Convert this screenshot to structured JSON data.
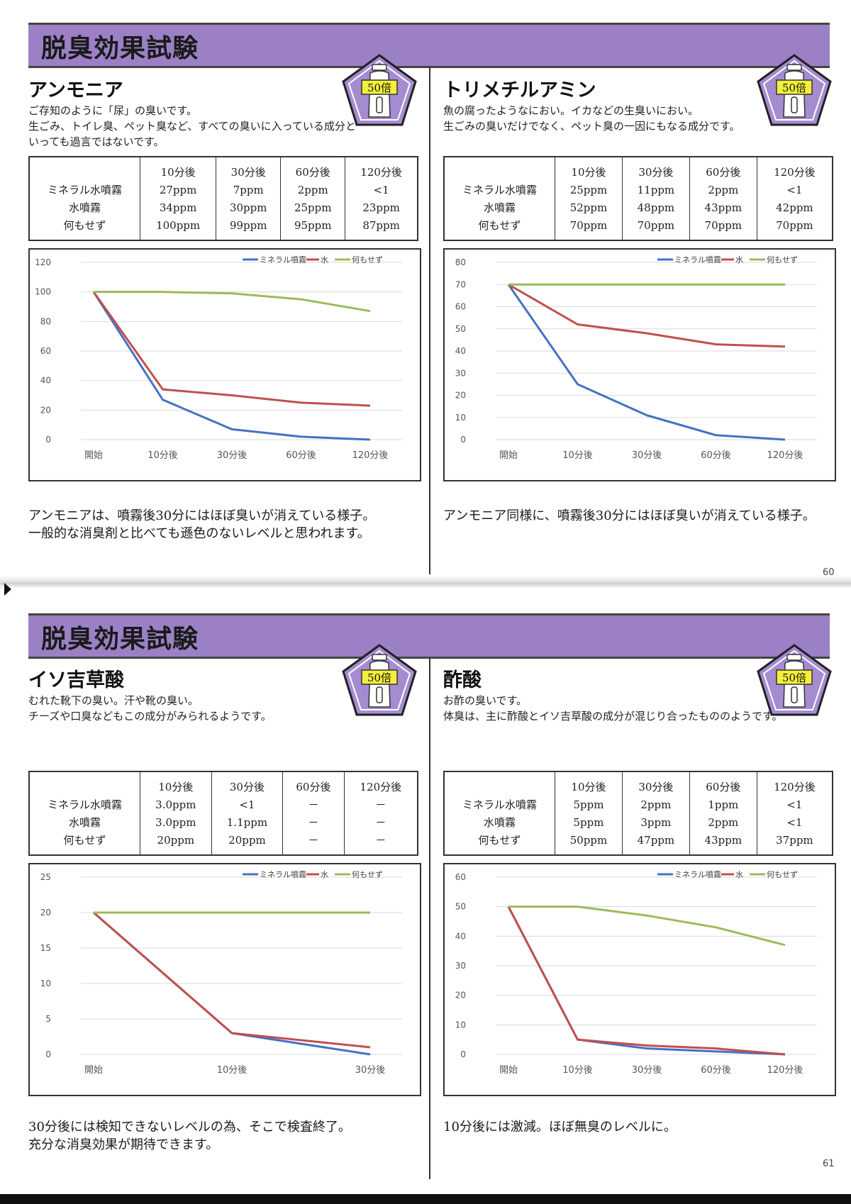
{
  "pages": [
    {
      "banner_title": "脱臭効果試験",
      "page_number": "60",
      "sections": [
        {
          "heading": "アンモニア",
          "badge": "50倍",
          "description": "ご存知のように「尿」の臭いです。\n生ごみ、トイレ臭、ペット臭など、すべての臭いに入っている成分と\nいっても過言ではないです。",
          "table": {
            "headers": [
              "",
              "10分後",
              "30分後",
              "60分後",
              "120分後"
            ],
            "rows": [
              [
                "ミネラル水噴霧",
                "27ppm",
                "7ppm",
                "2ppm",
                "<1"
              ],
              [
                "水噴霧",
                "34ppm",
                "30ppm",
                "25ppm",
                "23ppm"
              ],
              [
                "何もせず",
                "100ppm",
                "99ppm",
                "95ppm",
                "87ppm"
              ]
            ]
          },
          "chart_data": {
            "type": "line",
            "categories": [
              "開始",
              "10分後",
              "30分後",
              "60分後",
              "120分後"
            ],
            "series": [
              {
                "name": "ミネラル噴霧",
                "values": [
                  100,
                  27,
                  7,
                  2,
                  0
                ],
                "color": "#4472c4"
              },
              {
                "name": "水",
                "values": [
                  100,
                  34,
                  30,
                  25,
                  23
                ],
                "color": "#c0504d"
              },
              {
                "name": "何もせず",
                "values": [
                  100,
                  100,
                  99,
                  95,
                  87
                ],
                "color": "#9bbb59"
              }
            ],
            "ylim": [
              0,
              120
            ],
            "yticks": [
              "0",
              "20",
              "40",
              "60",
              "80",
              "100",
              "120"
            ],
            "grid": true,
            "legend": "top-right"
          },
          "conclusion": "アンモニアは、噴霧後30分にはほぼ臭いが消えている様子。\n一般的な消臭剤と比べても遜色のないレベルと思われます。"
        },
        {
          "heading": "トリメチルアミン",
          "badge": "50倍",
          "description": "魚の腐ったようなにおい。イカなどの生臭いにおい。\n生ごみの臭いだけでなく、ペット臭の一因にもなる成分です。",
          "table": {
            "headers": [
              "",
              "10分後",
              "30分後",
              "60分後",
              "120分後"
            ],
            "rows": [
              [
                "ミネラル水噴霧",
                "25ppm",
                "11ppm",
                "2ppm",
                "<1"
              ],
              [
                "水噴霧",
                "52ppm",
                "48ppm",
                "43ppm",
                "42ppm"
              ],
              [
                "何もせず",
                "70ppm",
                "70ppm",
                "70ppm",
                "70ppm"
              ]
            ]
          },
          "chart_data": {
            "type": "line",
            "categories": [
              "開始",
              "10分後",
              "30分後",
              "60分後",
              "120分後"
            ],
            "series": [
              {
                "name": "ミネラル噴霧",
                "values": [
                  70,
                  25,
                  11,
                  2,
                  0
                ],
                "color": "#4472c4"
              },
              {
                "name": "水",
                "values": [
                  70,
                  52,
                  48,
                  43,
                  42
                ],
                "color": "#c0504d"
              },
              {
                "name": "何もせず",
                "values": [
                  70,
                  70,
                  70,
                  70,
                  70
                ],
                "color": "#9bbb59"
              }
            ],
            "ylim": [
              0,
              80
            ],
            "yticks": [
              "0",
              "10",
              "20",
              "30",
              "40",
              "50",
              "60",
              "70",
              "80"
            ],
            "grid": true,
            "legend": "top-right"
          },
          "conclusion": "アンモニア同様に、噴霧後30分にはほぼ臭いが消えている様子。"
        }
      ]
    },
    {
      "banner_title": "脱臭効果試験",
      "page_number": "61",
      "sections": [
        {
          "heading": "イソ吉草酸",
          "badge": "50倍",
          "description": "むれた靴下の臭い。汗や靴の臭い。\nチーズや口臭などもこの成分がみられるようです。",
          "table": {
            "headers": [
              "",
              "10分後",
              "30分後",
              "60分後",
              "120分後"
            ],
            "rows": [
              [
                "ミネラル水噴霧",
                "3.0ppm",
                "<1",
                "－",
                "－"
              ],
              [
                "水噴霧",
                "3.0ppm",
                "1.1ppm",
                "－",
                "－"
              ],
              [
                "何もせず",
                "20ppm",
                "20ppm",
                "－",
                "－"
              ]
            ]
          },
          "chart_data": {
            "type": "line",
            "categories": [
              "開始",
              "10分後",
              "30分後"
            ],
            "series": [
              {
                "name": "ミネラル噴霧",
                "values": [
                  20,
                  3,
                  0
                ],
                "color": "#4472c4"
              },
              {
                "name": "水",
                "values": [
                  20,
                  3,
                  1
                ],
                "color": "#c0504d"
              },
              {
                "name": "何もせず",
                "values": [
                  20,
                  20,
                  20
                ],
                "color": "#9bbb59"
              }
            ],
            "ylim": [
              0,
              25
            ],
            "yticks": [
              "0",
              "5",
              "10",
              "15",
              "20",
              "25"
            ],
            "grid": true,
            "legend": "top-right"
          },
          "conclusion": "30分後には検知できないレベルの為、そこで検査終了。\n充分な消臭効果が期待できます。"
        },
        {
          "heading": "酢酸",
          "badge": "50倍",
          "description": "お酢の臭いです。\n体臭は、主に酢酸とイソ吉草酸の成分が混じり合ったもののようです。",
          "table": {
            "headers": [
              "",
              "10分後",
              "30分後",
              "60分後",
              "120分後"
            ],
            "rows": [
              [
                "ミネラル水噴霧",
                "5ppm",
                "2ppm",
                "1ppm",
                "<1"
              ],
              [
                "水噴霧",
                "5ppm",
                "3ppm",
                "2ppm",
                "<1"
              ],
              [
                "何もせず",
                "50ppm",
                "47ppm",
                "43ppm",
                "37ppm"
              ]
            ]
          },
          "chart_data": {
            "type": "line",
            "categories": [
              "開始",
              "10分後",
              "30分後",
              "60分後",
              "120分後"
            ],
            "series": [
              {
                "name": "ミネラル噴霧",
                "values": [
                  50,
                  5,
                  2,
                  1,
                  0
                ],
                "color": "#4472c4"
              },
              {
                "name": "水",
                "values": [
                  50,
                  5,
                  3,
                  2,
                  0
                ],
                "color": "#c0504d"
              },
              {
                "name": "何もせず",
                "values": [
                  50,
                  50,
                  47,
                  43,
                  37
                ],
                "color": "#9bbb59"
              }
            ],
            "ylim": [
              0,
              60
            ],
            "yticks": [
              "0",
              "10",
              "20",
              "30",
              "40",
              "50",
              "60"
            ],
            "grid": true,
            "legend": "top-right"
          },
          "conclusion": "10分後には激減。ほぼ無臭のレベルに。"
        }
      ]
    }
  ],
  "colors": {
    "banner": "#9b80c6",
    "badge_fill": "#a58bd0",
    "badge_label_bg": "#f3ef3b",
    "mineral": "#4472c4",
    "water": "#c0504d",
    "none": "#9bbb59"
  }
}
